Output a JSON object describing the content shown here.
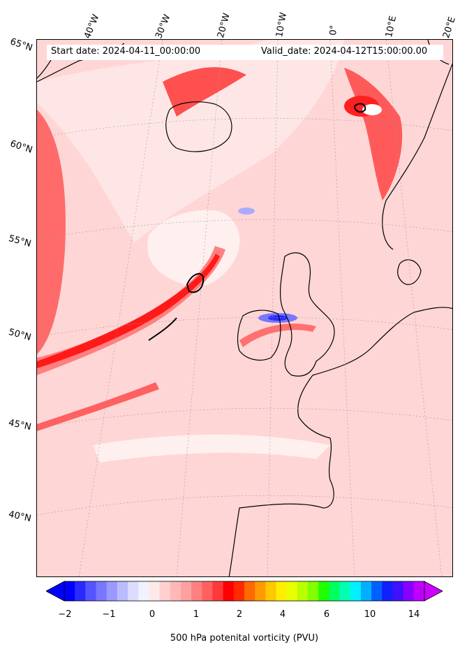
{
  "map": {
    "title_start": "Start date: 2024-04-11_00:00:00",
    "title_valid": "Valid_date: 2024-04-12T15:00:00.00",
    "longitude_labels": [
      "40°W",
      "30°W",
      "20°W",
      "10°W",
      "0°",
      "10°E",
      "20°E"
    ],
    "latitude_labels": [
      "65°N",
      "60°N",
      "55°N",
      "50°N",
      "45°N",
      "40°N"
    ],
    "field": "500 hPa potential vorticity",
    "region": "North Atlantic and Western Europe"
  },
  "colorbar": {
    "label": "500 hPa potenital vorticity (PVU)",
    "tick_labels": [
      "−2",
      "−1",
      "0",
      "1",
      "2",
      "4",
      "6",
      "10",
      "14"
    ],
    "colors": [
      "#0000ff",
      "#2a2aff",
      "#5555ff",
      "#7777ff",
      "#9999ff",
      "#bbbbff",
      "#dcdcff",
      "#f2f2ff",
      "#ffe8e8",
      "#ffd0d0",
      "#ffb8b8",
      "#ffa0a0",
      "#ff8080",
      "#ff6060",
      "#ff3838",
      "#ff0000",
      "#ff2a00",
      "#ff6a00",
      "#ff9a00",
      "#ffc800",
      "#ffee00",
      "#e8ff00",
      "#b8ff00",
      "#80ff00",
      "#20ff00",
      "#00ff60",
      "#00ffb0",
      "#00f0ff",
      "#00b0ff",
      "#0060ff",
      "#1020ff",
      "#4010ff",
      "#8800ff",
      "#c000ff"
    ],
    "left_extension_color": "#0000ff",
    "right_extension_color": "#cc00ff"
  }
}
